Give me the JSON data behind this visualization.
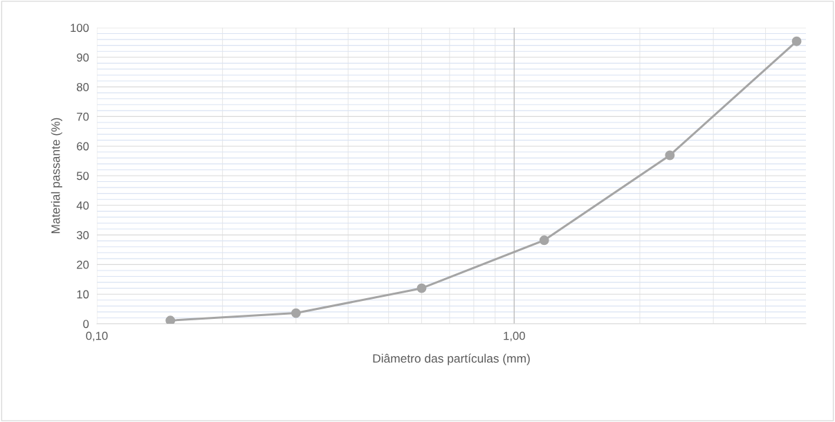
{
  "chart_data": {
    "type": "line",
    "xlabel": "Diâmetro das partículas (mm)",
    "ylabel": "Material passante (%)",
    "x": [
      0.15,
      0.3,
      0.6,
      1.18,
      2.36,
      4.75
    ],
    "series": [
      {
        "color": "#a5a5a5",
        "values": [
          1.1,
          3.6,
          12,
          28.2,
          56.9,
          95.4
        ]
      }
    ],
    "log": "x",
    "xlim": [
      0.1,
      5
    ],
    "xticks": [
      {
        "value": 0.1,
        "label": "0,10"
      },
      {
        "value": 1,
        "label": "1,00"
      }
    ],
    "ylim": [
      0,
      100
    ],
    "yticks": [
      0,
      10,
      20,
      30,
      40,
      50,
      60,
      70,
      80,
      90,
      100
    ],
    "ref_lines": [
      {
        "axis": "x",
        "value": 1,
        "color": "#bfbfbf"
      }
    ],
    "grid": true,
    "marker": "circle",
    "line_style": "solid"
  }
}
